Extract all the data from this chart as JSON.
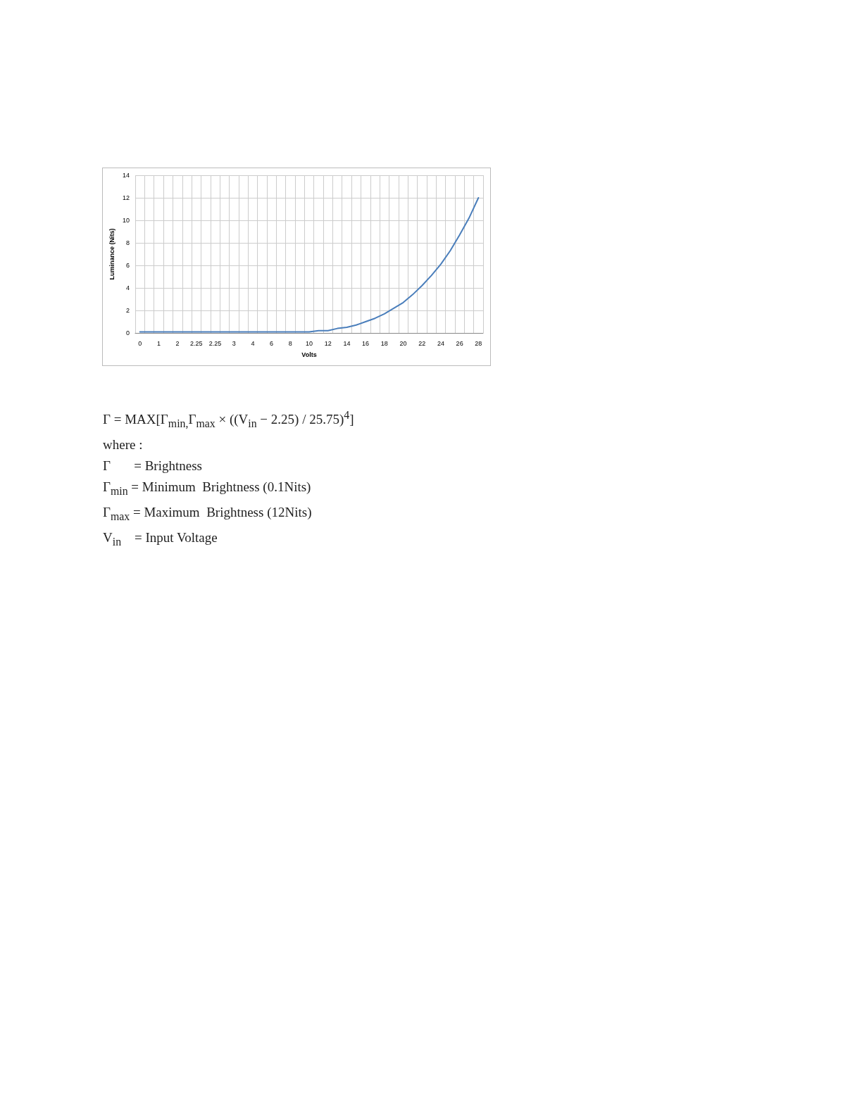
{
  "chart_data": {
    "type": "line",
    "xlabel": "Volts",
    "ylabel": "Luminance (Nits)",
    "categories": [
      "0",
      null,
      "1",
      null,
      "2",
      null,
      "2.25",
      null,
      "2.25",
      null,
      "3",
      null,
      "4",
      null,
      "6",
      null,
      "8",
      null,
      "10",
      null,
      "12",
      null,
      "14",
      null,
      "16",
      null,
      "18",
      null,
      "20",
      null,
      "22",
      null,
      "24",
      null,
      "26",
      null,
      "28"
    ],
    "series": [
      {
        "color": "#4a7ebb",
        "values": [
          0.1,
          0.1,
          0.1,
          0.1,
          0.1,
          0.1,
          0.1,
          0.1,
          0.1,
          0.1,
          0.1,
          0.1,
          0.1,
          0.1,
          0.1,
          0.1,
          0.1,
          0.1,
          0.1,
          0.2,
          0.2,
          0.4,
          0.5,
          0.7,
          1.0,
          1.3,
          1.7,
          2.2,
          2.7,
          3.4,
          4.2,
          5.1,
          6.1,
          7.3,
          8.7,
          10.2,
          12
        ]
      }
    ],
    "ylim": [
      0,
      14
    ],
    "yticks": [
      0,
      2,
      4,
      6,
      8,
      10,
      12,
      14
    ],
    "grid": true,
    "marker": "none",
    "line_style": "solid",
    "annotations": [
      "Γ = MAX[Γ$_{min,}$Γ$_{max}$ × ((V$_{in}$ − 2.25) / 25.75)$^{4}$]",
      "where :",
      "Γ       = Brightness",
      "Γ$_{min}$ = Minimum  Brightness (0.1Nits)",
      "Γ$_{max}$ = Maximum  Brightness (12Nits)",
      "V$_{in}$    = Input Voltage"
    ]
  }
}
